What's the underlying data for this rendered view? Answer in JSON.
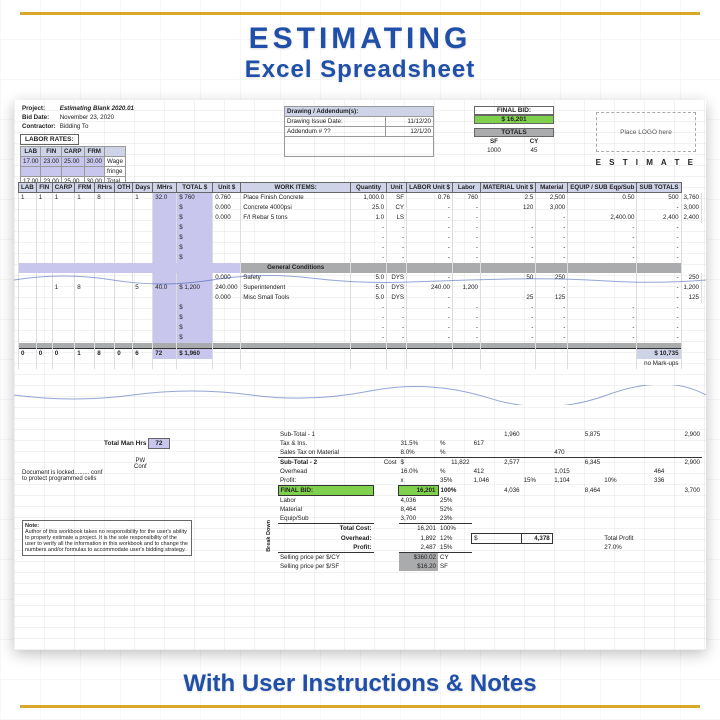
{
  "titles": {
    "line1": "ESTIMATING",
    "line2": "Excel Spreadsheet",
    "footer": "With User Instructions & Notes"
  },
  "project": {
    "label_project": "Project:",
    "project_name": "Estimating Blank 2020.01",
    "label_biddate": "Bid Date:",
    "bid_date": "November 23, 2020",
    "label_contractor": "Contractor:",
    "contractor": "Bidding To"
  },
  "labor_rates": {
    "title": "LABOR RATES:",
    "cols": [
      "LAB",
      "FIN",
      "CARP",
      "FRM"
    ],
    "wage": [
      "17.00",
      "23.00",
      "25.00",
      "30.00",
      "Wage"
    ],
    "fringe": [
      "",
      "",
      "",
      "",
      "fringe"
    ],
    "total": [
      "17.00",
      "23.00",
      "25.00",
      "30.00",
      "Total"
    ]
  },
  "drawing": {
    "title": "Drawing / Addendum(s):",
    "r1": [
      "Drawing Issue Date:",
      "11/12/20"
    ],
    "r2": [
      "Addendum # ??",
      "12/1/20"
    ]
  },
  "final_bid": {
    "label": "FINAL BID:",
    "value": "$        16,201"
  },
  "totals_box": {
    "title": "TOTALS",
    "cols": [
      "SF",
      "CY"
    ],
    "vals": [
      "1000",
      "45"
    ]
  },
  "logo_placeholder": "Place LOGO here",
  "estimate_label": "E S T I M A T E",
  "headers": [
    "LAB",
    "FIN",
    "CARP",
    "FRM",
    "RHrs",
    "OTH",
    "Days",
    "MHrs",
    "TOTAL $",
    "Unit $",
    "WORK ITEMS:",
    "Quantity",
    "Unit",
    "LABOR Unit $",
    "Labor",
    "MATERIAL Unit $",
    "Material",
    "EQUIP / SUB Eqp/Sub",
    "SUB TOTALS"
  ],
  "rows": [
    {
      "l": [
        "1",
        "1",
        "1",
        "1",
        "8",
        "",
        "1",
        "32.0",
        "$    760",
        "0.760"
      ],
      "item": "Place Finish Concrete",
      "qty": "1,000.0",
      "unit": "SF",
      "lu": "0.76",
      "lab": "760",
      "mu": "2.5",
      "mat": "2,500",
      "eu": "0.50",
      "eq": "500",
      "sub": "3,760"
    },
    {
      "l": [
        "",
        "",
        "",
        "",
        "",
        "",
        "",
        "",
        "$",
        "0.000"
      ],
      "item": "Concrete 4000psi",
      "qty": "25.0",
      "unit": "CY",
      "lu": "-",
      "lab": "-",
      "mu": "120",
      "mat": "3,000",
      "eu": "",
      "eq": "-",
      "sub": "3,000"
    },
    {
      "l": [
        "",
        "",
        "",
        "",
        "",
        "",
        "",
        "",
        "$",
        "0.000"
      ],
      "item": "F/I Rebar 5 tons",
      "qty": "1.0",
      "unit": "LS",
      "lu": "-",
      "lab": "-",
      "mu": "",
      "mat": "-",
      "eu": "2,400.00",
      "eq": "2,400",
      "sub": "2,400"
    }
  ],
  "gc": {
    "label": "General Conditions",
    "rows": [
      {
        "l": [
          "",
          "",
          "",
          "",
          "",
          "",
          "",
          "",
          "",
          "0.000"
        ],
        "item": "Safety",
        "qty": "5.0",
        "unit": "DYS",
        "lu": "-",
        "lab": "",
        "mu": "50",
        "mat": "250",
        "eu": "",
        "eq": "-",
        "sub": "250"
      },
      {
        "l": [
          "",
          "",
          "1",
          "8",
          "",
          "",
          "5",
          "40.0",
          "$ 1,200",
          "240.000"
        ],
        "item": "Superintendent",
        "qty": "5.0",
        "unit": "DYS",
        "lu": "240.00",
        "lab": "1,200",
        "mu": "",
        "mat": "-",
        "eu": "",
        "eq": "-",
        "sub": "1,200"
      },
      {
        "l": [
          "",
          "",
          "",
          "",
          "",
          "",
          "",
          "",
          "",
          "0.000"
        ],
        "item": "Misc Small Tools",
        "qty": "5.0",
        "unit": "DYS",
        "lu": "-",
        "lab": "",
        "mu": "25",
        "mat": "125",
        "eu": "",
        "eq": "-",
        "sub": "125"
      }
    ]
  },
  "sum_row": {
    "l": [
      "0",
      "0",
      "0",
      "1",
      "8",
      "0",
      "6",
      "72",
      "$  1,960"
    ],
    "sub_grand": "$    10,735",
    "markup_note": "no Mark-ups"
  },
  "man_hrs": {
    "label": "Total Man Hrs",
    "val": "72"
  },
  "doc_lock": {
    "line1": "Document is locked.........",
    "line2": "PW",
    "line3": "conf",
    "line4": "Conf",
    "line5": "to protect programmed cells"
  },
  "note": {
    "head": "Note:",
    "body": "Author of this workbook takes no responsibility for the user's ability to properly estimate a project. It is the sole responsibility of the user to verify all the information in this workbook and to change the numbers and/or formulas to accommodate user's bidding strategy."
  },
  "summary": {
    "rows": [
      [
        "Sub-Total - 1",
        "",
        "",
        "1,960",
        "",
        "5,875",
        "",
        "2,900",
        ""
      ],
      [
        "Tax & Ins.",
        "31.5%",
        "%",
        "617",
        "",
        "",
        "",
        "",
        ""
      ],
      [
        "Sales Tax on Material",
        "8.0%",
        "%",
        "",
        "",
        "470",
        "",
        "",
        ""
      ],
      [
        "Sub-Total - 2         Cost",
        "$",
        "11,822",
        "2,577",
        "",
        "6,345",
        "",
        "2,900",
        ""
      ],
      [
        "Overhead",
        "16.0%",
        "%",
        "412",
        "",
        "1,015",
        "",
        "464",
        ""
      ],
      [
        "Profit:",
        "x",
        "35%",
        "1,046",
        "15%",
        "1,104",
        "10%",
        "336",
        ""
      ]
    ],
    "final": {
      "label": "FINAL BID:",
      "val": "16,201",
      "pct": "100%",
      "break": "Break Down",
      "labor": [
        "Labor",
        "4,036",
        "25%"
      ],
      "material": [
        "Material",
        "8,464",
        "52%"
      ],
      "equip": [
        "Equip/Sub",
        "3,700",
        "23%"
      ],
      "totals_right": {
        "r1": [
          "4,036",
          "",
          "8,464",
          "",
          "3,700"
        ],
        "total_cost": [
          "Total Cost:",
          "16,201",
          "100%"
        ],
        "overhead": [
          "Overhead:",
          "1,892",
          "12%",
          "$",
          "4,378",
          "Total Profit"
        ],
        "profit": [
          "Profit:",
          "2,487",
          "15%",
          "",
          "",
          "27.0%"
        ]
      },
      "selling": [
        [
          "Selling price per $/CY",
          "$360.02",
          "CY"
        ],
        [
          "Selling price per $/SF",
          "$16.20",
          "SF"
        ]
      ]
    }
  },
  "colors": {
    "header_bg": "#cfd3e8",
    "lavender": "#c8c6ec",
    "band": "#a9abad",
    "green": "#7fd04c",
    "accent_blue": "#1f4fa8",
    "gold": "#d9a62e"
  }
}
